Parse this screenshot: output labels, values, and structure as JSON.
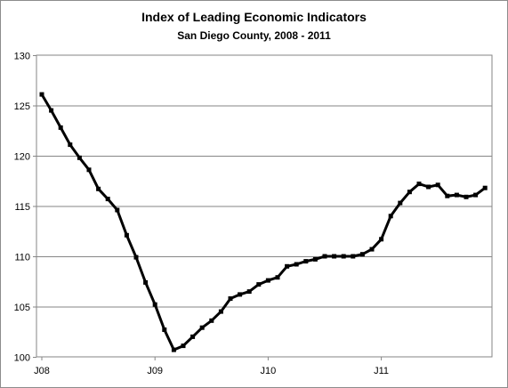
{
  "chart_data": {
    "type": "line",
    "title": "Index of Leading Economic Indicators",
    "subtitle": "San Diego County, 2008 - 2011",
    "xlabel": "",
    "ylabel": "",
    "ylim": [
      100,
      130
    ],
    "yticks": [
      100,
      105,
      110,
      115,
      120,
      125,
      130
    ],
    "xtick_labels": [
      "J08",
      "J09",
      "J10",
      "J11"
    ],
    "grid": true,
    "legend": "none",
    "line_color": "#000000",
    "x": [
      "2008-01",
      "2008-02",
      "2008-03",
      "2008-04",
      "2008-05",
      "2008-06",
      "2008-07",
      "2008-08",
      "2008-09",
      "2008-10",
      "2008-11",
      "2008-12",
      "2009-01",
      "2009-02",
      "2009-03",
      "2009-04",
      "2009-05",
      "2009-06",
      "2009-07",
      "2009-08",
      "2009-09",
      "2009-10",
      "2009-11",
      "2009-12",
      "2010-01",
      "2010-02",
      "2010-03",
      "2010-04",
      "2010-05",
      "2010-06",
      "2010-07",
      "2010-08",
      "2010-09",
      "2010-10",
      "2010-11",
      "2010-12",
      "2011-01",
      "2011-02",
      "2011-03",
      "2011-04",
      "2011-05",
      "2011-06",
      "2011-07",
      "2011-08",
      "2011-09",
      "2011-10",
      "2011-11",
      "2011-12"
    ],
    "series": [
      {
        "values": [
          126.1,
          124.5,
          122.8,
          121.1,
          119.8,
          118.6,
          116.7,
          115.7,
          114.6,
          112.1,
          109.9,
          107.4,
          105.2,
          102.7,
          100.7,
          101.1,
          102.0,
          102.9,
          103.6,
          104.5,
          105.8,
          106.2,
          106.5,
          107.2,
          107.6,
          107.9,
          109.0,
          109.2,
          109.5,
          109.7,
          110.0,
          110.0,
          110.0,
          110.0,
          110.2,
          110.7,
          111.7,
          114.0,
          115.3,
          116.4,
          117.2,
          116.9,
          117.1,
          116.0,
          116.1,
          115.9,
          116.1,
          116.8
        ]
      }
    ]
  }
}
